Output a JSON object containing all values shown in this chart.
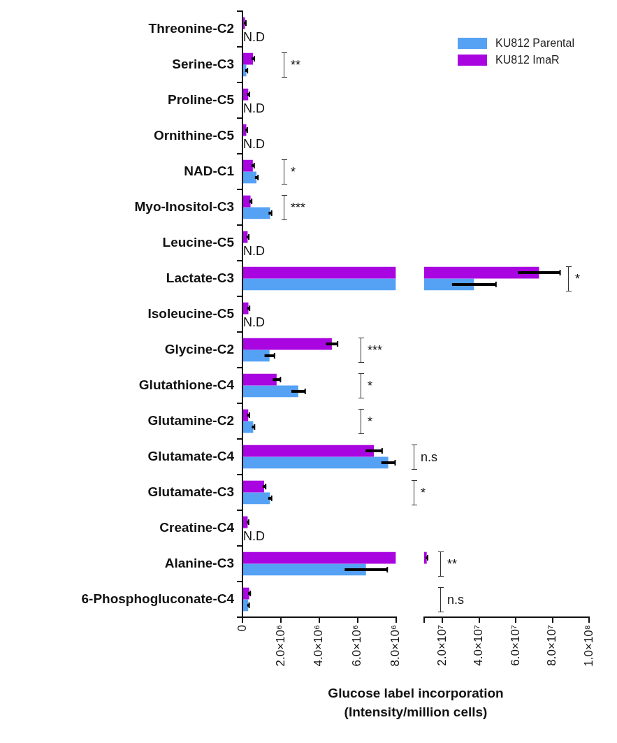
{
  "chart_data": [
    {
      "type": "bar",
      "orientation": "horizontal",
      "xlabel": "Glucose label incorporation\n(Intensity/million cells)",
      "categories": [
        "Threonine-C2",
        "Serine-C3",
        "Proline-C5",
        "Ornithine-C5",
        "NAD-C1",
        "Myo-Inositol-C3",
        "Leucine-C5",
        "Lactate-C3",
        "Isoleucine-C5",
        "Glycine-C2",
        "Glutathione-C4",
        "Glutamine-C2",
        "Glutamate-C4",
        "Glutamate-C3",
        "Creatine-C4",
        "Alanine-C3",
        "6-Phosphogluconate-C4"
      ],
      "series": [
        {
          "color": "#a805e0",
          "values": [
            130000,
            550000,
            300000,
            200000,
            540000,
            420000,
            270000,
            8000000,
            310000,
            4660000,
            1780000,
            300000,
            6850000,
            1130000,
            270000,
            8000000,
            350000
          ],
          "errors": [
            50000,
            70000,
            60000,
            50000,
            70000,
            60000,
            60000,
            null,
            60000,
            300000,
            200000,
            60000,
            430000,
            80000,
            50000,
            null,
            60000
          ]
        },
        {
          "color": "#55a2f5",
          "values": [
            null,
            200000,
            null,
            null,
            730000,
            1440000,
            null,
            8000000,
            null,
            1410000,
            2910000,
            560000,
            7600000,
            1430000,
            null,
            6440000,
            300000
          ],
          "errors": [
            null,
            60000,
            null,
            null,
            80000,
            80000,
            null,
            null,
            null,
            260000,
            360000,
            70000,
            360000,
            90000,
            null,
            1110000,
            50000
          ]
        }
      ],
      "xlim": [
        0,
        8000000
      ],
      "xticks": [
        0,
        {
          "value": 2000000,
          "label": "2.0×10⁶"
        },
        {
          "value": 4000000,
          "label": "4.0×10⁶"
        },
        {
          "value": 6000000,
          "label": "6.0×10⁶"
        },
        {
          "value": 8000000,
          "label": "8.0×10⁶"
        }
      ],
      "grid": false,
      "legend": false,
      "annotations": [
        "N.D",
        "**",
        "N.D",
        "N.D",
        "*",
        "***",
        "N.D",
        "*",
        "N.D",
        "***",
        "*",
        "*",
        "n.s",
        "*",
        "N.D",
        "**",
        "n.s"
      ]
    },
    {
      "type": "bar",
      "orientation": "horizontal",
      "series": [
        {
          "name": "KU812 ImaR",
          "color": "#a805e0",
          "values": [
            null,
            null,
            null,
            null,
            null,
            null,
            null,
            72700000,
            null,
            null,
            null,
            null,
            null,
            null,
            null,
            11400000,
            null
          ],
          "errors": [
            null,
            null,
            null,
            null,
            null,
            null,
            null,
            11500000,
            null,
            null,
            null,
            null,
            null,
            null,
            null,
            500000,
            null
          ]
        },
        {
          "name": "KU812 Parental",
          "color": "#55a2f5",
          "values": [
            null,
            null,
            null,
            null,
            null,
            null,
            null,
            37200000,
            null,
            null,
            null,
            null,
            null,
            null,
            null,
            null,
            null
          ],
          "errors": [
            null,
            null,
            null,
            null,
            null,
            null,
            null,
            12000000,
            null,
            null,
            null,
            null,
            null,
            null,
            null,
            null,
            null
          ]
        }
      ],
      "xlim": [
        10000000,
        100000000
      ],
      "xticks": [
        {
          "value": 10000000,
          "label": null
        },
        {
          "value": 20000000,
          "label": "2.0×10⁷"
        },
        {
          "value": 40000000,
          "label": "4.0×10⁷"
        },
        {
          "value": 60000000,
          "label": "6.0×10⁷"
        },
        {
          "value": 80000000,
          "label": "8.0×10⁷"
        },
        {
          "value": 100000000,
          "label": "1.0×10⁸"
        }
      ],
      "grid": false,
      "legend": "top right",
      "tick_labels": "x"
    }
  ]
}
